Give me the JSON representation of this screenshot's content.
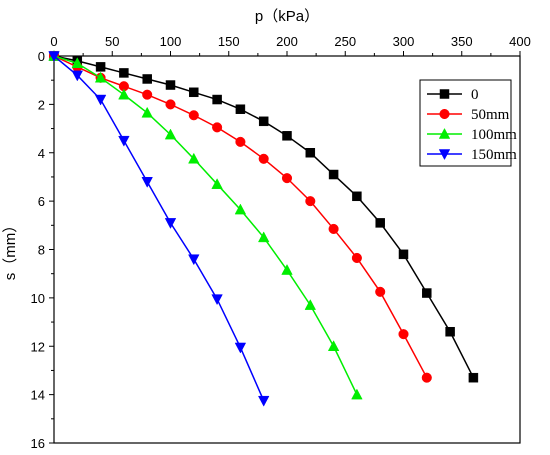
{
  "chart_data": {
    "type": "line",
    "xlabel": "p（kPa）",
    "ylabel": "s（mm）",
    "xlim": [
      0,
      400
    ],
    "ylim": [
      0,
      16
    ],
    "y_inverted": true,
    "x_axis_position": "top",
    "x_ticks": [
      0,
      50,
      100,
      150,
      200,
      250,
      300,
      350,
      400
    ],
    "y_ticks": [
      0,
      2,
      4,
      6,
      8,
      10,
      12,
      14,
      16
    ],
    "grid": false,
    "legend_position": "top-right",
    "series": [
      {
        "name": "0",
        "color": "#000000",
        "marker": "square",
        "x": [
          0,
          20,
          40,
          60,
          80,
          100,
          120,
          140,
          160,
          180,
          200,
          220,
          240,
          260,
          280,
          300,
          320,
          340,
          360
        ],
        "y": [
          0,
          0.2,
          0.45,
          0.7,
          0.95,
          1.2,
          1.5,
          1.8,
          2.2,
          2.7,
          3.3,
          4.0,
          4.9,
          5.8,
          6.9,
          8.2,
          9.8,
          11.4,
          13.3
        ]
      },
      {
        "name": "50mm",
        "color": "#ff0000",
        "marker": "circle",
        "x": [
          0,
          20,
          40,
          60,
          80,
          100,
          120,
          140,
          160,
          180,
          200,
          220,
          240,
          260,
          280,
          300,
          320
        ],
        "y": [
          0,
          0.45,
          0.9,
          1.25,
          1.6,
          2.0,
          2.45,
          2.95,
          3.55,
          4.25,
          5.05,
          6.0,
          7.15,
          8.35,
          9.75,
          11.5,
          13.3
        ]
      },
      {
        "name": "100mm",
        "color": "#00ee00",
        "marker": "triangle-up",
        "x": [
          0,
          20,
          40,
          60,
          80,
          100,
          120,
          140,
          160,
          180,
          200,
          220,
          240,
          260
        ],
        "y": [
          0,
          0.3,
          0.9,
          1.6,
          2.35,
          3.25,
          4.25,
          5.3,
          6.35,
          7.5,
          8.85,
          10.3,
          12.0,
          14.0
        ]
      },
      {
        "name": "150mm",
        "color": "#0000ff",
        "marker": "triangle-down",
        "x": [
          0,
          20,
          40,
          60,
          80,
          100,
          120,
          140,
          160,
          180
        ],
        "y": [
          0,
          0.8,
          1.8,
          3.5,
          5.2,
          6.9,
          8.4,
          10.05,
          12.05,
          14.25
        ]
      }
    ]
  }
}
